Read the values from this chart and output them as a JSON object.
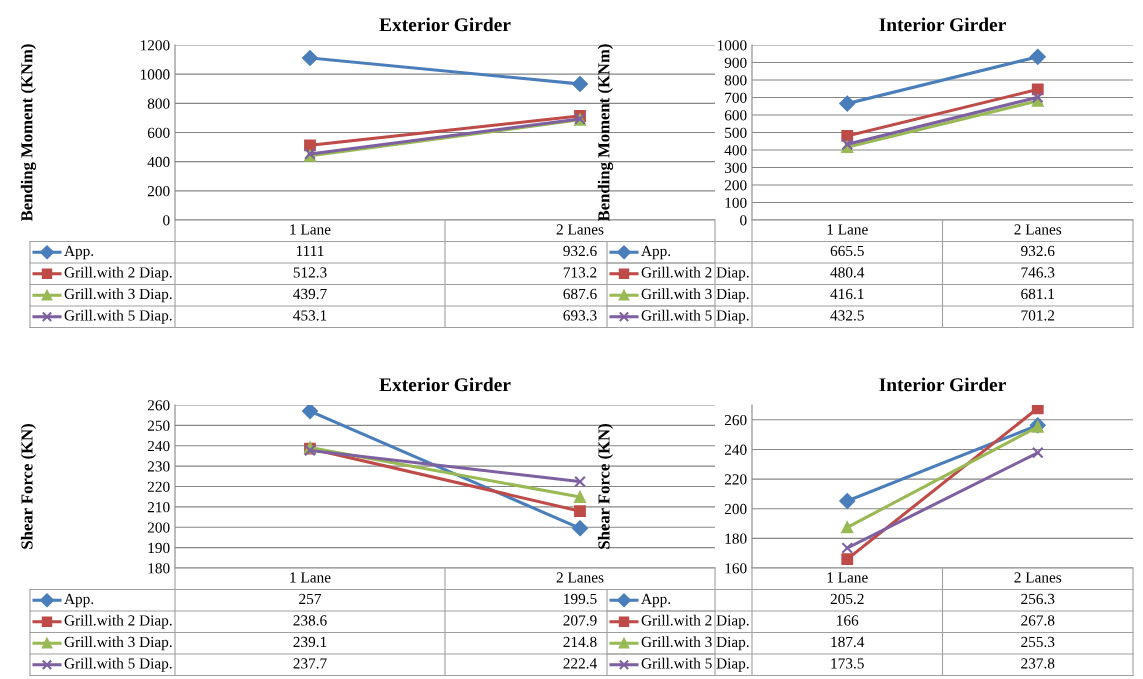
{
  "chart_data": [
    {
      "type": "line",
      "title": "Exterior Girder",
      "ylabel": "Bending Moment (KNm)",
      "categories": [
        "1 Lane",
        "2 Lanes"
      ],
      "ylim": [
        0,
        1200
      ],
      "yticks": [
        0,
        200,
        400,
        600,
        800,
        1000,
        1200
      ],
      "grid": "y",
      "legend": "bottom left",
      "data_labels": true,
      "series": [
        {
          "name": "App.",
          "color": "#4a7ebb",
          "marker": "diamond",
          "values": [
            1111,
            932.6
          ]
        },
        {
          "name": "Grill.with 2 Diap.",
          "color": "#be4b48",
          "marker": "square",
          "values": [
            512.3,
            713.2
          ]
        },
        {
          "name": "Grill.with 3 Diap.",
          "color": "#98b954",
          "marker": "triangle",
          "values": [
            439.7,
            687.6
          ]
        },
        {
          "name": "Grill.with 5 Diap.",
          "color": "#7d60a0",
          "marker": "cross",
          "values": [
            453.1,
            693.3
          ]
        }
      ]
    },
    {
      "type": "line",
      "title": "Interior Girder",
      "ylabel": "Bending Moment (KNm)",
      "categories": [
        "1 Lane",
        "2 Lanes"
      ],
      "ylim": [
        0,
        1000
      ],
      "yticks": [
        0,
        100,
        200,
        300,
        400,
        500,
        600,
        700,
        800,
        900,
        1000
      ],
      "grid": "y",
      "legend": "bottom left",
      "data_labels": true,
      "series": [
        {
          "name": "App.",
          "color": "#4a7ebb",
          "marker": "diamond",
          "values": [
            665.5,
            932.6
          ]
        },
        {
          "name": "Grill.with 2 Diap.",
          "color": "#be4b48",
          "marker": "square",
          "values": [
            480.4,
            746.3
          ]
        },
        {
          "name": "Grill.with 3 Diap.",
          "color": "#98b954",
          "marker": "triangle",
          "values": [
            416.1,
            681.1
          ]
        },
        {
          "name": "Grill.with 5 Diap.",
          "color": "#7d60a0",
          "marker": "cross",
          "values": [
            432.5,
            701.2
          ]
        }
      ]
    },
    {
      "type": "line",
      "title": "Exterior Girder",
      "ylabel": "Shear Force (KN)",
      "categories": [
        "1 Lane",
        "2 Lanes"
      ],
      "ylim": [
        180,
        260
      ],
      "yticks": [
        180,
        190,
        200,
        210,
        220,
        230,
        240,
        250,
        260
      ],
      "grid": "y",
      "legend": "bottom left",
      "data_labels": true,
      "series": [
        {
          "name": "App.",
          "color": "#4a7ebb",
          "marker": "diamond",
          "values": [
            257,
            199.5
          ]
        },
        {
          "name": "Grill.with 2 Diap.",
          "color": "#be4b48",
          "marker": "square",
          "values": [
            238.6,
            207.9
          ]
        },
        {
          "name": "Grill.with 3 Diap.",
          "color": "#98b954",
          "marker": "triangle",
          "values": [
            239.1,
            214.8
          ]
        },
        {
          "name": "Grill.with 5 Diap.",
          "color": "#7d60a0",
          "marker": "cross",
          "values": [
            237.7,
            222.4
          ]
        }
      ]
    },
    {
      "type": "line",
      "title": "Interior Girder",
      "ylabel": "Shear Force (KN)",
      "categories": [
        "1 Lane",
        "2 Lanes"
      ],
      "ylim": [
        160,
        270
      ],
      "yticks": [
        160,
        180,
        200,
        220,
        240,
        260
      ],
      "grid": "y",
      "legend": "bottom left",
      "data_labels": true,
      "series": [
        {
          "name": "App.",
          "color": "#4a7ebb",
          "marker": "diamond",
          "values": [
            205.2,
            256.3
          ]
        },
        {
          "name": "Grill.with 2 Diap.",
          "color": "#be4b48",
          "marker": "square",
          "values": [
            166,
            267.8
          ]
        },
        {
          "name": "Grill.with 3 Diap.",
          "color": "#98b954",
          "marker": "triangle",
          "values": [
            187.4,
            255.3
          ]
        },
        {
          "name": "Grill.with 5 Diap.",
          "color": "#7d60a0",
          "marker": "cross",
          "values": [
            173.5,
            237.8
          ]
        }
      ]
    }
  ]
}
